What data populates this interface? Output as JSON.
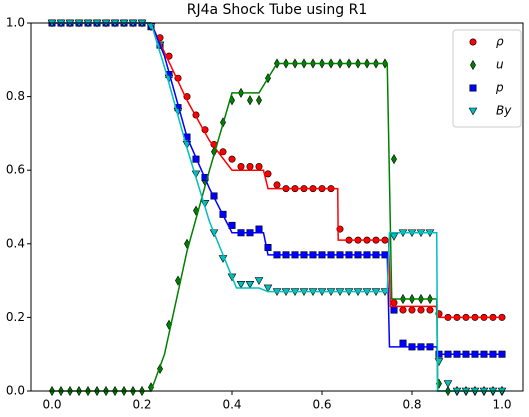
{
  "chart_data": {
    "type": "scatter",
    "title": "RJ4a Shock Tube using R1",
    "xlim": [
      -0.0467,
      1.0467
    ],
    "ylim": [
      0,
      1
    ],
    "xticks": [
      {
        "value": 0,
        "label": "0.0"
      },
      0.2,
      0.4,
      0.6,
      0.8,
      {
        "value": 1,
        "label": "1.0"
      }
    ],
    "yticks": [
      {
        "value": 0,
        "label": "0.0"
      },
      0.2,
      0.4,
      0.6,
      0.8,
      {
        "value": 1,
        "label": "1.0"
      }
    ],
    "legend": "upper right",
    "x": [
      0,
      0.02,
      0.04,
      0.06,
      0.08,
      0.1,
      0.12,
      0.14,
      0.16,
      0.18,
      0.2,
      0.22,
      0.24,
      0.26,
      0.28,
      0.3,
      0.32,
      0.34,
      0.36,
      0.38,
      0.4,
      0.42,
      0.44,
      0.46,
      0.48,
      0.5,
      0.52,
      0.54,
      0.56,
      0.58,
      0.6,
      0.62,
      0.64,
      0.66,
      0.68,
      0.7,
      0.72,
      0.74,
      0.76,
      0.78,
      0.8,
      0.82,
      0.84,
      0.86,
      0.88,
      0.9,
      0.92,
      0.94,
      0.96,
      0.98,
      1.0
    ],
    "series": [
      {
        "name": "ρ",
        "color": "#ff0000",
        "marker": "circle",
        "values": [
          1,
          1,
          1,
          1,
          1,
          1,
          1,
          1,
          1,
          1,
          1,
          0.99,
          0.96,
          0.91,
          0.85,
          0.8,
          0.75,
          0.71,
          0.67,
          0.65,
          0.63,
          0.61,
          0.61,
          0.61,
          0.59,
          0.56,
          0.55,
          0.55,
          0.55,
          0.55,
          0.55,
          0.55,
          0.44,
          0.41,
          0.41,
          0.41,
          0.41,
          0.41,
          0.24,
          0.22,
          0.22,
          0.22,
          0.22,
          0.21,
          0.2,
          0.2,
          0.2,
          0.2,
          0.2,
          0.2,
          0.2
        ],
        "line": {
          "x": [
            0,
            0.22,
            0.25,
            0.3,
            0.35,
            0.4,
            0.47,
            0.48,
            0.635,
            0.636,
            0.748,
            0.752,
            0.854,
            0.856,
            1.0
          ],
          "values": [
            1,
            1,
            0.92,
            0.79,
            0.68,
            0.6,
            0.6,
            0.55,
            0.55,
            0.41,
            0.41,
            0.23,
            0.23,
            0.2,
            0.2
          ]
        }
      },
      {
        "name": "u",
        "color": "#008000",
        "marker": "diamond",
        "values": [
          0,
          0,
          0,
          0,
          0,
          0,
          0,
          0,
          0,
          0,
          0,
          0.01,
          0.06,
          0.18,
          0.3,
          0.4,
          0.49,
          0.57,
          0.65,
          0.73,
          0.79,
          0.81,
          0.79,
          0.79,
          0.85,
          0.89,
          0.89,
          0.89,
          0.89,
          0.89,
          0.89,
          0.89,
          0.89,
          0.89,
          0.89,
          0.89,
          0.89,
          0.89,
          0.63,
          0.25,
          0.25,
          0.25,
          0.25,
          0.02,
          0,
          0,
          0,
          0,
          0,
          0,
          0
        ],
        "line": {
          "x": [
            0,
            0.22,
            0.25,
            0.3,
            0.35,
            0.4,
            0.46,
            0.5,
            0.745,
            0.755,
            0.855,
            0.857,
            1.0
          ],
          "values": [
            0,
            0,
            0.1,
            0.38,
            0.6,
            0.81,
            0.81,
            0.89,
            0.89,
            0.25,
            0.25,
            0,
            0
          ]
        }
      },
      {
        "name": "p",
        "color": "#0000ff",
        "marker": "square",
        "values": [
          1,
          1,
          1,
          1,
          1,
          1,
          1,
          1,
          1,
          1,
          1,
          0.99,
          0.94,
          0.86,
          0.77,
          0.69,
          0.63,
          0.58,
          0.53,
          0.48,
          0.45,
          0.43,
          0.43,
          0.44,
          0.39,
          0.37,
          0.37,
          0.37,
          0.37,
          0.37,
          0.37,
          0.37,
          0.37,
          0.37,
          0.37,
          0.37,
          0.37,
          0.37,
          0.22,
          0.13,
          0.12,
          0.12,
          0.12,
          0.1,
          0.1,
          0.1,
          0.1,
          0.1,
          0.1,
          0.1,
          0.1
        ],
        "line": {
          "x": [
            0,
            0.22,
            0.25,
            0.3,
            0.35,
            0.4,
            0.47,
            0.48,
            0.745,
            0.75,
            0.855,
            0.857,
            1.0
          ],
          "values": [
            1,
            1,
            0.91,
            0.69,
            0.55,
            0.43,
            0.43,
            0.37,
            0.37,
            0.12,
            0.12,
            0.1,
            0.1
          ]
        }
      },
      {
        "name": "By",
        "color": "#00bfbf",
        "marker": "triangle",
        "values": [
          1,
          1,
          1,
          1,
          1,
          1,
          1,
          1,
          1,
          1,
          1,
          0.99,
          0.94,
          0.85,
          0.76,
          0.67,
          0.59,
          0.51,
          0.43,
          0.36,
          0.31,
          0.29,
          0.29,
          0.3,
          0.28,
          0.27,
          0.27,
          0.27,
          0.27,
          0.27,
          0.27,
          0.27,
          0.27,
          0.27,
          0.27,
          0.27,
          0.27,
          0.27,
          0.42,
          0.43,
          0.43,
          0.43,
          0.43,
          0.08,
          0.02,
          0,
          0,
          0,
          0,
          0,
          0
        ],
        "line": {
          "x": [
            0,
            0.22,
            0.25,
            0.3,
            0.35,
            0.41,
            0.46,
            0.48,
            0.745,
            0.75,
            0.855,
            0.857,
            1.0
          ],
          "values": [
            1,
            1,
            0.88,
            0.66,
            0.46,
            0.28,
            0.28,
            0.27,
            0.27,
            0.43,
            0.43,
            0,
            0
          ]
        }
      }
    ]
  }
}
